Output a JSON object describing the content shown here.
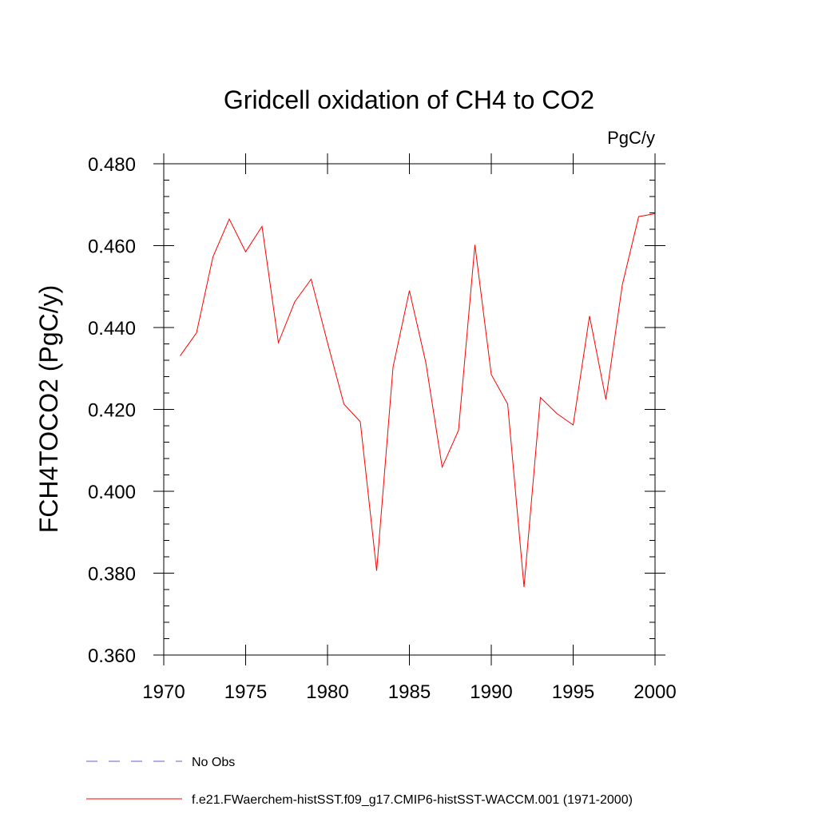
{
  "chart_data": {
    "type": "line",
    "title": "Gridcell oxidation of CH4 to CO2",
    "units_label": "PgC/y",
    "ylabel": "FCH4TOCO2  (PgC/y)",
    "xlabel": "",
    "xlim": [
      1970,
      2000
    ],
    "ylim": [
      0.36,
      0.48
    ],
    "x_ticks": [
      1970,
      1975,
      1980,
      1985,
      1990,
      1995,
      2000
    ],
    "x_tick_labels": [
      "1970",
      "1975",
      "1980",
      "1985",
      "1990",
      "1995",
      "2000"
    ],
    "y_ticks": [
      0.36,
      0.38,
      0.4,
      0.42,
      0.44,
      0.46,
      0.48
    ],
    "y_tick_labels": [
      "0.360",
      "0.380",
      "0.400",
      "0.420",
      "0.440",
      "0.460",
      "0.480"
    ],
    "grid": false,
    "legend_position": "bottom",
    "series": [
      {
        "name": "f.e21.FWaerchem-histSST.f09_g17.CMIP6-histSST-WACCM.001 (1971-2000)",
        "color": "#ff0000",
        "style": "solid",
        "x": [
          1971,
          1972,
          1973,
          1974,
          1975,
          1976,
          1977,
          1978,
          1979,
          1980,
          1981,
          1982,
          1983,
          1984,
          1985,
          1986,
          1987,
          1988,
          1989,
          1990,
          1991,
          1992,
          1993,
          1994,
          1995,
          1996,
          1997,
          1998,
          1999,
          2000
        ],
        "y": [
          0.4331,
          0.4387,
          0.4572,
          0.4665,
          0.4585,
          0.4647,
          0.4363,
          0.4463,
          0.4518,
          0.4363,
          0.4213,
          0.417,
          0.3806,
          0.4303,
          0.449,
          0.4315,
          0.4059,
          0.4149,
          0.4602,
          0.4285,
          0.4213,
          0.3766,
          0.4229,
          0.419,
          0.4162,
          0.4428,
          0.4224,
          0.4504,
          0.4671,
          0.4678
        ]
      }
    ],
    "legend": [
      {
        "label": "No Obs",
        "color": "#6a5acd",
        "style": "dashed"
      },
      {
        "label": "f.e21.FWaerchem-histSST.f09_g17.CMIP6-histSST-WACCM.001 (1971-2000)",
        "color": "#ff0000",
        "style": "solid"
      }
    ]
  }
}
